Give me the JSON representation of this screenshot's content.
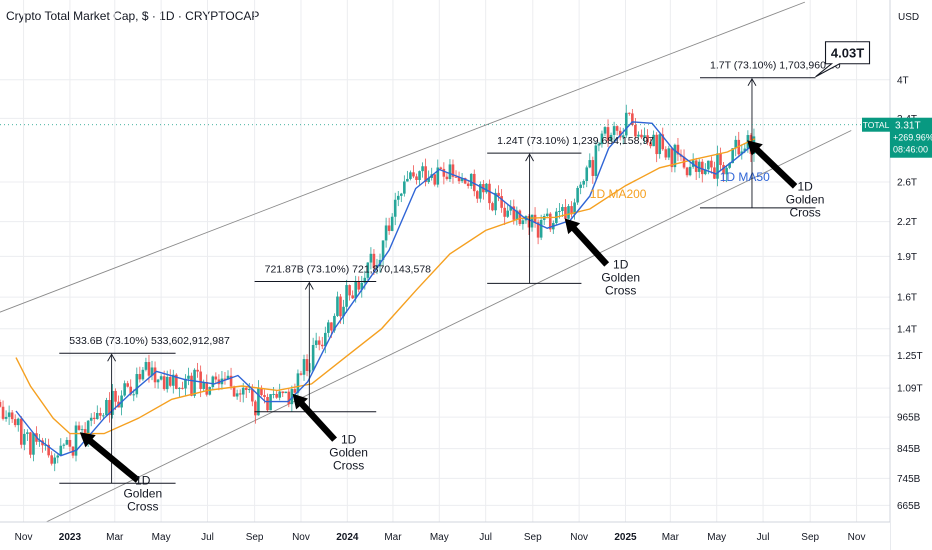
{
  "header": {
    "title": "Crypto Total Market Cap, $ · 1D · CRYPTOCAP"
  },
  "price_scale": {
    "currency": "USD"
  },
  "last_price": {
    "symbol": "TOTAL",
    "value": "3.31T",
    "change": "+269.96%",
    "countdown": "08:46:00"
  },
  "colors": {
    "up": "#26a69a",
    "down": "#ef5350",
    "ma50": "#2f65d6",
    "ma200": "#f5a020",
    "channel": "#8a8a8a",
    "tag": "#089981",
    "grid": "#ecedf0"
  },
  "chart_data": {
    "type": "candlestick",
    "y_scale": "log",
    "ylim": [
      620,
      5600
    ],
    "y_unit": "B",
    "x_ticks": [
      "Nov",
      "2023",
      "Mar",
      "May",
      "Jul",
      "Sep",
      "Nov",
      "2024",
      "Mar",
      "May",
      "Jul",
      "Sep",
      "Nov",
      "2025",
      "Mar",
      "May",
      "Jul",
      "Sep",
      "Nov"
    ],
    "y_ticks": [
      "4T",
      "3.4T",
      "2.6T",
      "2.2T",
      "1.9T",
      "1.6T",
      "1.4T",
      "1.25T",
      "1.09T",
      "965B",
      "845B",
      "745B",
      "665B"
    ],
    "series": [
      {
        "name": "1D MA200",
        "points": [
          [
            "2022-10-22",
            1240
          ],
          [
            "2022-11-10",
            1100
          ],
          [
            "2022-12-10",
            960
          ],
          [
            "2023-01-01",
            900
          ],
          [
            "2023-02-15",
            900
          ],
          [
            "2023-04-01",
            960
          ],
          [
            "2023-05-15",
            1040
          ],
          [
            "2023-07-01",
            1080
          ],
          [
            "2023-08-15",
            1100
          ],
          [
            "2023-10-01",
            1080
          ],
          [
            "2023-11-15",
            1110
          ],
          [
            "2024-01-01",
            1250
          ],
          [
            "2024-02-15",
            1400
          ],
          [
            "2024-04-01",
            1650
          ],
          [
            "2024-05-15",
            1920
          ],
          [
            "2024-07-01",
            2120
          ],
          [
            "2024-08-15",
            2230
          ],
          [
            "2024-10-01",
            2240
          ],
          [
            "2024-11-15",
            2320
          ],
          [
            "2025-01-01",
            2560
          ],
          [
            "2025-02-15",
            2760
          ],
          [
            "2025-04-01",
            2860
          ],
          [
            "2025-05-15",
            2950
          ],
          [
            "2025-06-20",
            3120
          ]
        ]
      },
      {
        "name": "1D MA50",
        "points": [
          [
            "2022-10-22",
            990
          ],
          [
            "2022-11-20",
            880
          ],
          [
            "2022-12-20",
            820
          ],
          [
            "2023-01-10",
            840
          ],
          [
            "2023-02-15",
            960
          ],
          [
            "2023-03-20",
            1060
          ],
          [
            "2023-04-25",
            1170
          ],
          [
            "2023-06-01",
            1130
          ],
          [
            "2023-07-10",
            1110
          ],
          [
            "2023-08-10",
            1150
          ],
          [
            "2023-09-15",
            1030
          ],
          [
            "2023-10-15",
            1030
          ],
          [
            "2023-11-10",
            1120
          ],
          [
            "2023-12-15",
            1400
          ],
          [
            "2024-01-20",
            1650
          ],
          [
            "2024-02-25",
            1950
          ],
          [
            "2024-03-31",
            2530
          ],
          [
            "2024-05-01",
            2740
          ],
          [
            "2024-06-10",
            2610
          ],
          [
            "2024-07-15",
            2460
          ],
          [
            "2024-08-20",
            2240
          ],
          [
            "2024-09-20",
            2140
          ],
          [
            "2024-10-20",
            2210
          ],
          [
            "2024-11-15",
            2450
          ],
          [
            "2024-12-10",
            3000
          ],
          [
            "2025-01-10",
            3350
          ],
          [
            "2025-02-05",
            3330
          ],
          [
            "2025-03-05",
            2980
          ],
          [
            "2025-04-05",
            2770
          ],
          [
            "2025-04-30",
            2690
          ],
          [
            "2025-05-25",
            2860
          ],
          [
            "2025-06-20",
            3060
          ]
        ]
      }
    ],
    "measurements": [
      {
        "label": "533.6B (73.10%) 533,602,912,987",
        "start": "2022-12-18",
        "end": "2023-05-20",
        "low": 730,
        "high": 1263
      },
      {
        "label": "721.87B (73.10%) 721,870,143,578",
        "start": "2023-09-01",
        "end": "2024-02-08",
        "low": 987,
        "high": 1709
      },
      {
        "label": "1.24T (73.10%) 1,239,684,158,97",
        "start": "2024-07-03",
        "end": "2024-11-04",
        "low": 1696,
        "high": 2936
      },
      {
        "label": "1.7T (73.10%) 1,703,960,40",
        "start": "2025-04-09",
        "end": "2025-09-08",
        "low": 2331,
        "high": 4035
      }
    ],
    "annotations": [
      {
        "type": "golden-cross",
        "text": [
          "1D",
          "Golden",
          "Cross"
        ],
        "date": "2023-01-14",
        "value": 905
      },
      {
        "type": "golden-cross",
        "text": [
          "1D",
          "Golden",
          "Cross"
        ],
        "date": "2023-10-21",
        "value": 1065
      },
      {
        "type": "golden-cross",
        "text": [
          "1D",
          "Golden",
          "Cross"
        ],
        "date": "2024-10-13",
        "value": 2230
      },
      {
        "type": "golden-cross",
        "text": [
          "1D",
          "Golden",
          "Cross"
        ],
        "date": "2025-06-10",
        "value": 3100
      }
    ],
    "callout": {
      "text": "4.03T",
      "value": 4030
    },
    "channel": {
      "upper": [
        [
          "2022-09-30",
          1500
        ],
        [
          "2025-08-25",
          5550
        ]
      ],
      "lower": [
        [
          "2022-10-30",
          590
        ],
        [
          "2025-10-25",
          3230
        ]
      ]
    },
    "ma_labels": [
      {
        "text": "1D MA200",
        "series": "1D MA200",
        "date": "2024-11-15",
        "value": 2430
      },
      {
        "text": "1D MA50",
        "series": "1D MA50",
        "date": "2025-05-05",
        "value": 2610
      }
    ]
  }
}
